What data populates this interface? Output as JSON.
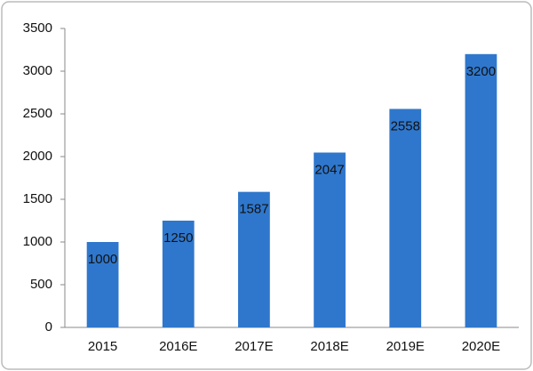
{
  "chart_data": {
    "type": "bar",
    "categories": [
      "2015",
      "2016E",
      "2017E",
      "2018E",
      "2019E",
      "2020E"
    ],
    "values": [
      1000,
      1250,
      1587,
      2047,
      2558,
      3200
    ],
    "color": "#2f77cc",
    "ylim": [
      0,
      3500
    ],
    "yticks": [
      0,
      500,
      1000,
      1500,
      2000,
      2500,
      3000,
      3500
    ],
    "grid": false
  }
}
